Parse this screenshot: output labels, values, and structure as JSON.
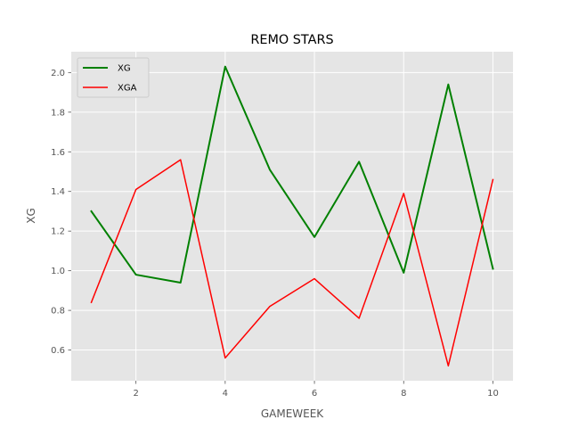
{
  "chart_data": {
    "type": "line",
    "title": "REMO STARS",
    "xlabel": "GAMEWEEK",
    "ylabel": "XG",
    "x": [
      1,
      2,
      3,
      4,
      5,
      6,
      7,
      8,
      9,
      10
    ],
    "xticks": [
      2,
      4,
      6,
      8,
      10
    ],
    "yticks": [
      0.6,
      0.8,
      1.0,
      1.2,
      1.4,
      1.6,
      1.8,
      2.0
    ],
    "xlim": [
      0.55,
      10.45
    ],
    "ylim": [
      0.445,
      2.105
    ],
    "grid": true,
    "legend_position": "upper-left",
    "series": [
      {
        "name": "XG",
        "color": "#008000",
        "line_width": 2,
        "values": [
          1.3,
          0.98,
          0.94,
          2.03,
          1.51,
          1.17,
          1.55,
          0.99,
          1.94,
          1.01
        ]
      },
      {
        "name": "XGA",
        "color": "#ff0000",
        "line_width": 1.5,
        "values": [
          0.84,
          1.41,
          1.56,
          0.56,
          0.82,
          0.96,
          0.76,
          1.39,
          0.52,
          1.46
        ]
      }
    ]
  }
}
